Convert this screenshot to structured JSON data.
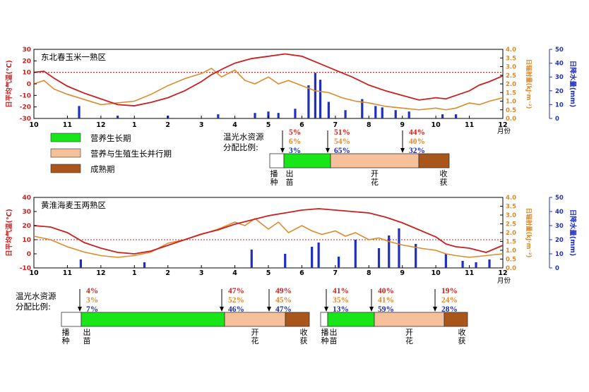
{
  "colors": {
    "temperature": "#cc1f1f",
    "radiation": "#de8a2a",
    "precipitation": "#1f2fbf",
    "vegetative": "#19e619",
    "overlap": "#f5c09a",
    "maturity": "#a8561a",
    "pct_temp": "#d42020",
    "pct_rad": "#e08a30",
    "pct_prec": "#1a2aa8"
  },
  "legend": {
    "vegetative": "营养生长期",
    "overlap": "营养与生殖生长并行期",
    "maturity": "成熟期"
  },
  "alloc_label_line1": "温光水资源",
  "alloc_label_line2": "分配比例:",
  "month_unit": "月份",
  "axes": {
    "temp_label": "日平均气温(℃)",
    "rad_label": "日辐射量(kJ·m⁻²)",
    "prec_label": "日降水量(mm)"
  },
  "chart_data": [
    {
      "type": "line",
      "title": "东北春玉米一熟区",
      "x_ticks": [
        "10",
        "11",
        "12",
        "1",
        "2",
        "3",
        "4",
        "5",
        "6",
        "7",
        "8",
        "9",
        "10",
        "11",
        "12"
      ],
      "temp_ylim": [
        -30,
        30
      ],
      "temp_ticks": [
        30,
        20,
        10,
        0,
        -10,
        -20,
        -30
      ],
      "rad_ylim": [
        0,
        4.0
      ],
      "rad_ticks": [
        "4.0",
        "3.5",
        "3.0",
        "2.5",
        "2.0",
        "1.5",
        "1.0",
        "0.5",
        "0.0"
      ],
      "prec_ylim": [
        0,
        50
      ],
      "prec_ticks": [
        "50",
        "40",
        "30",
        "20",
        "10",
        "0"
      ],
      "threshold_temp": 10,
      "series": [
        {
          "name": "temperature",
          "points": [
            [
              0,
              10
            ],
            [
              0.3,
              11
            ],
            [
              0.6,
              5
            ],
            [
              1,
              -2
            ],
            [
              1.5,
              -8
            ],
            [
              2,
              -13
            ],
            [
              2.5,
              -18
            ],
            [
              3,
              -19
            ],
            [
              3.5,
              -16
            ],
            [
              4,
              -12
            ],
            [
              4.5,
              -6
            ],
            [
              5,
              2
            ],
            [
              5.3,
              8
            ],
            [
              5.7,
              14
            ],
            [
              6,
              18
            ],
            [
              6.5,
              22
            ],
            [
              7,
              24
            ],
            [
              7.5,
              26
            ],
            [
              8,
              24
            ],
            [
              8.5,
              18
            ],
            [
              9,
              12
            ],
            [
              9.5,
              6
            ],
            [
              10,
              -1
            ],
            [
              10.5,
              -6
            ],
            [
              11,
              -10
            ],
            [
              11.5,
              -14
            ],
            [
              12,
              -12
            ],
            [
              12.3,
              -13
            ],
            [
              12.6,
              -10
            ],
            [
              13,
              -6
            ],
            [
              13.3,
              -1
            ],
            [
              13.6,
              2
            ],
            [
              14,
              7
            ]
          ]
        },
        {
          "name": "radiation",
          "points": [
            [
              0,
              2.0
            ],
            [
              0.3,
              2.2
            ],
            [
              0.6,
              1.7
            ],
            [
              1,
              1.4
            ],
            [
              1.5,
              1.1
            ],
            [
              2,
              0.8
            ],
            [
              2.5,
              0.9
            ],
            [
              3,
              1.0
            ],
            [
              3.5,
              1.4
            ],
            [
              4,
              1.9
            ],
            [
              4.5,
              2.3
            ],
            [
              5,
              2.6
            ],
            [
              5.3,
              2.9
            ],
            [
              5.6,
              2.4
            ],
            [
              6,
              2.8
            ],
            [
              6.3,
              2.2
            ],
            [
              6.6,
              2.0
            ],
            [
              7,
              2.4
            ],
            [
              7.3,
              2.0
            ],
            [
              7.6,
              2.2
            ],
            [
              8,
              1.9
            ],
            [
              8.4,
              1.6
            ],
            [
              8.8,
              1.5
            ],
            [
              9.2,
              1.2
            ],
            [
              9.6,
              1.0
            ],
            [
              10,
              0.9
            ],
            [
              10.5,
              0.7
            ],
            [
              11,
              0.6
            ],
            [
              11.5,
              0.5
            ],
            [
              12,
              0.6
            ],
            [
              12.3,
              0.5
            ],
            [
              12.6,
              0.6
            ],
            [
              13,
              0.9
            ],
            [
              13.3,
              0.8
            ],
            [
              13.6,
              1.0
            ],
            [
              14,
              1.2
            ]
          ]
        },
        {
          "name": "precipitation",
          "values": [
            [
              1.35,
              9
            ],
            [
              2.5,
              2
            ],
            [
              4,
              2
            ],
            [
              5.5,
              3
            ],
            [
              6.6,
              4
            ],
            [
              7,
              5
            ],
            [
              7.3,
              4
            ],
            [
              7.8,
              7
            ],
            [
              8.2,
              24
            ],
            [
              8.4,
              33
            ],
            [
              8.55,
              28
            ],
            [
              8.8,
              12
            ],
            [
              9.3,
              6
            ],
            [
              9.8,
              14
            ],
            [
              10.2,
              9
            ],
            [
              10.4,
              8
            ],
            [
              10.8,
              6
            ],
            [
              11.2,
              5
            ],
            [
              12.2,
              3
            ],
            [
              12.6,
              3
            ]
          ]
        }
      ],
      "stages": {
        "markers": [
          {
            "lines": [
              "播",
              "种"
            ]
          },
          {
            "lines": [
              "出",
              "苗"
            ]
          },
          {
            "lines": [
              "开",
              "花"
            ]
          },
          {
            "lines": [
              "收",
              "获"
            ]
          }
        ],
        "allocations": [
          {
            "temp": "5%",
            "rad": "6%",
            "prec": "3%"
          },
          {
            "temp": "51%",
            "rad": "54%",
            "prec": "65%"
          },
          {
            "temp": "44%",
            "rad": "40%",
            "prec": "32%"
          }
        ]
      }
    },
    {
      "type": "line",
      "title": "黄淮海麦玉两熟区",
      "x_ticks": [
        "10",
        "11",
        "12",
        "1",
        "2",
        "3",
        "4",
        "5",
        "6",
        "7",
        "8",
        "9",
        "10",
        "11",
        "12"
      ],
      "temp_ylim": [
        -10,
        40
      ],
      "temp_ticks": [
        40,
        30,
        20,
        10,
        0,
        -10
      ],
      "rad_ylim": [
        0,
        4.0
      ],
      "rad_ticks": [
        "4.0",
        "3.5",
        "3.0",
        "2.5",
        "2.0",
        "1.5",
        "1.0",
        "0.5",
        "0.0"
      ],
      "prec_ylim": [
        0,
        50
      ],
      "prec_ticks": [
        "50",
        "40",
        "30",
        "20",
        "10",
        "0"
      ],
      "threshold_temp": 10,
      "series": [
        {
          "name": "temperature",
          "points": [
            [
              0,
              20
            ],
            [
              0.5,
              19
            ],
            [
              1,
              15
            ],
            [
              1.5,
              8
            ],
            [
              2,
              4
            ],
            [
              2.5,
              1
            ],
            [
              3,
              0
            ],
            [
              3.5,
              2
            ],
            [
              4,
              6
            ],
            [
              4.5,
              10
            ],
            [
              5,
              14
            ],
            [
              5.5,
              17
            ],
            [
              6,
              21
            ],
            [
              6.5,
              24
            ],
            [
              7,
              27
            ],
            [
              7.5,
              29
            ],
            [
              8,
              31
            ],
            [
              8.5,
              32
            ],
            [
              9,
              31
            ],
            [
              9.5,
              30
            ],
            [
              10,
              29
            ],
            [
              10.5,
              26
            ],
            [
              11,
              22
            ],
            [
              11.5,
              17
            ],
            [
              12,
              12
            ],
            [
              12.3,
              7
            ],
            [
              12.6,
              5
            ],
            [
              13,
              4
            ],
            [
              13.5,
              1
            ],
            [
              14,
              6
            ]
          ]
        },
        {
          "name": "radiation",
          "points": [
            [
              0,
              1.8
            ],
            [
              0.5,
              1.6
            ],
            [
              1,
              1.2
            ],
            [
              1.5,
              0.9
            ],
            [
              2,
              0.7
            ],
            [
              2.5,
              0.6
            ],
            [
              3,
              0.7
            ],
            [
              3.5,
              0.9
            ],
            [
              4,
              1.4
            ],
            [
              4.5,
              1.6
            ],
            [
              5,
              1.9
            ],
            [
              5.5,
              2.2
            ],
            [
              6,
              2.6
            ],
            [
              6.3,
              2.4
            ],
            [
              6.6,
              2.8
            ],
            [
              7,
              2.2
            ],
            [
              7.3,
              2.6
            ],
            [
              7.6,
              2.0
            ],
            [
              8,
              2.4
            ],
            [
              8.3,
              2.1
            ],
            [
              8.6,
              1.9
            ],
            [
              9,
              2.1
            ],
            [
              9.3,
              1.8
            ],
            [
              9.6,
              2.0
            ],
            [
              10,
              1.6
            ],
            [
              10.3,
              1.7
            ],
            [
              10.6,
              1.5
            ],
            [
              11,
              1.3
            ],
            [
              11.3,
              1.2
            ],
            [
              11.6,
              1.1
            ],
            [
              12,
              1.0
            ],
            [
              12.3,
              0.8
            ],
            [
              12.6,
              0.7
            ],
            [
              13,
              0.6
            ],
            [
              13.5,
              0.7
            ],
            [
              14,
              0.8
            ]
          ]
        },
        {
          "name": "precipitation",
          "values": [
            [
              1.4,
              6
            ],
            [
              3.3,
              4
            ],
            [
              6.5,
              13
            ],
            [
              7.5,
              10
            ],
            [
              8.3,
              15
            ],
            [
              8.5,
              18
            ],
            [
              9.1,
              8
            ],
            [
              9.6,
              20
            ],
            [
              10.3,
              14
            ],
            [
              10.6,
              23
            ],
            [
              10.9,
              28
            ],
            [
              11.4,
              17
            ],
            [
              12.3,
              10
            ],
            [
              12.8,
              5
            ],
            [
              13.2,
              4
            ],
            [
              13.6,
              6
            ]
          ]
        }
      ],
      "stages_wheat": {
        "markers": [
          {
            "lines": [
              "播",
              "种"
            ]
          },
          {
            "lines": [
              "出",
              "苗"
            ]
          },
          {
            "lines": [
              "开",
              "花"
            ]
          },
          {
            "lines": [
              "收",
              "获"
            ]
          }
        ],
        "allocations": [
          {
            "temp": "4%",
            "rad": "3%",
            "prec": "7%"
          },
          {
            "temp": "47%",
            "rad": "52%",
            "prec": "46%"
          },
          {
            "temp": "49%",
            "rad": "45%",
            "prec": "47%"
          }
        ]
      },
      "stages_maize": {
        "markers": [
          {
            "lines": [
              "播",
              "种"
            ]
          },
          {
            "lines": [
              "出",
              "苗"
            ]
          },
          {
            "lines": [
              "开",
              "花"
            ]
          },
          {
            "lines": [
              "收",
              "获"
            ]
          }
        ],
        "allocations": [
          {
            "temp": "41%",
            "rad": "35%",
            "prec": "13%"
          },
          {
            "temp": "40%",
            "rad": "41%",
            "prec": "59%"
          },
          {
            "temp": "19%",
            "rad": "24%",
            "prec": "28%"
          }
        ]
      }
    }
  ]
}
